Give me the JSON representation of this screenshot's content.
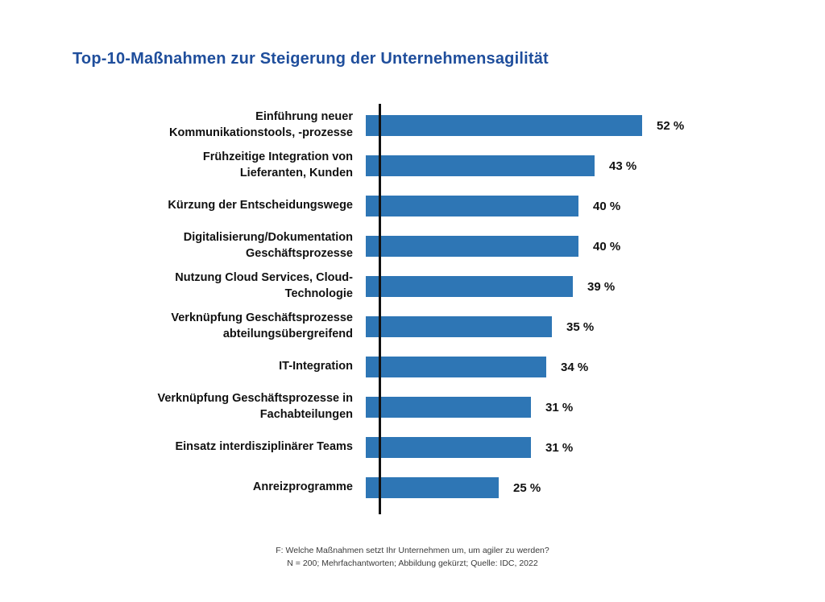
{
  "page": {
    "title": "Top-10-Maßnahmen zur Steigerung der Unternehmensagilität",
    "footer_line1": "F: Welche Maßnahmen setzt Ihr Unternehmen um, um agiler zu werden?",
    "footer_line2": "N = 200; Mehrfachantworten; Abbildung gekürzt; Quelle: IDC, 2022"
  },
  "colors": {
    "bar": "#2E76B5",
    "title": "#1F4E9C",
    "axis": "#111111"
  },
  "chart_data": {
    "type": "bar",
    "orientation": "horizontal",
    "title": "Top-10-Maßnahmen zur Steigerung der Unternehmensagilität",
    "categories": [
      "Einführung neuer Kommunikationstools, -prozesse",
      "Frühzeitige Integration von Lieferanten, Kunden",
      "Kürzung der Entscheidungswege",
      "Digitalisierung/Dokumentation Geschäftsprozesse",
      "Nutzung Cloud Services, Cloud-Technologie",
      "Verknüpfung Geschäftsprozesse abteilungsübergreifend",
      "IT-Integration",
      "Verknüpfung Geschäftsprozesse in Fachabteilungen",
      "Einsatz interdisziplinärer Teams",
      "Anreizprogramme"
    ],
    "category_lines": [
      [
        "Einführung neuer",
        "Kommunikationstools, -prozesse"
      ],
      [
        "Frühzeitige Integration von",
        "Lieferanten, Kunden"
      ],
      [
        "Kürzung der Entscheidungswege"
      ],
      [
        "Digitalisierung/Dokumentation",
        "Geschäftsprozesse"
      ],
      [
        "Nutzung Cloud Services, Cloud-",
        "Technologie"
      ],
      [
        "Verknüpfung Geschäftsprozesse",
        "abteilungsübergreifend"
      ],
      [
        "IT-Integration"
      ],
      [
        "Verknüpfung Geschäftsprozesse in",
        "Fachabteilungen"
      ],
      [
        "Einsatz interdisziplinärer Teams"
      ],
      [
        "Anreizprogramme"
      ]
    ],
    "values": [
      52,
      43,
      40,
      40,
      39,
      35,
      34,
      31,
      31,
      25
    ],
    "value_suffix": " %",
    "xlim": [
      0,
      55
    ],
    "grid": false,
    "legend": false,
    "xlabel": "",
    "ylabel": ""
  }
}
